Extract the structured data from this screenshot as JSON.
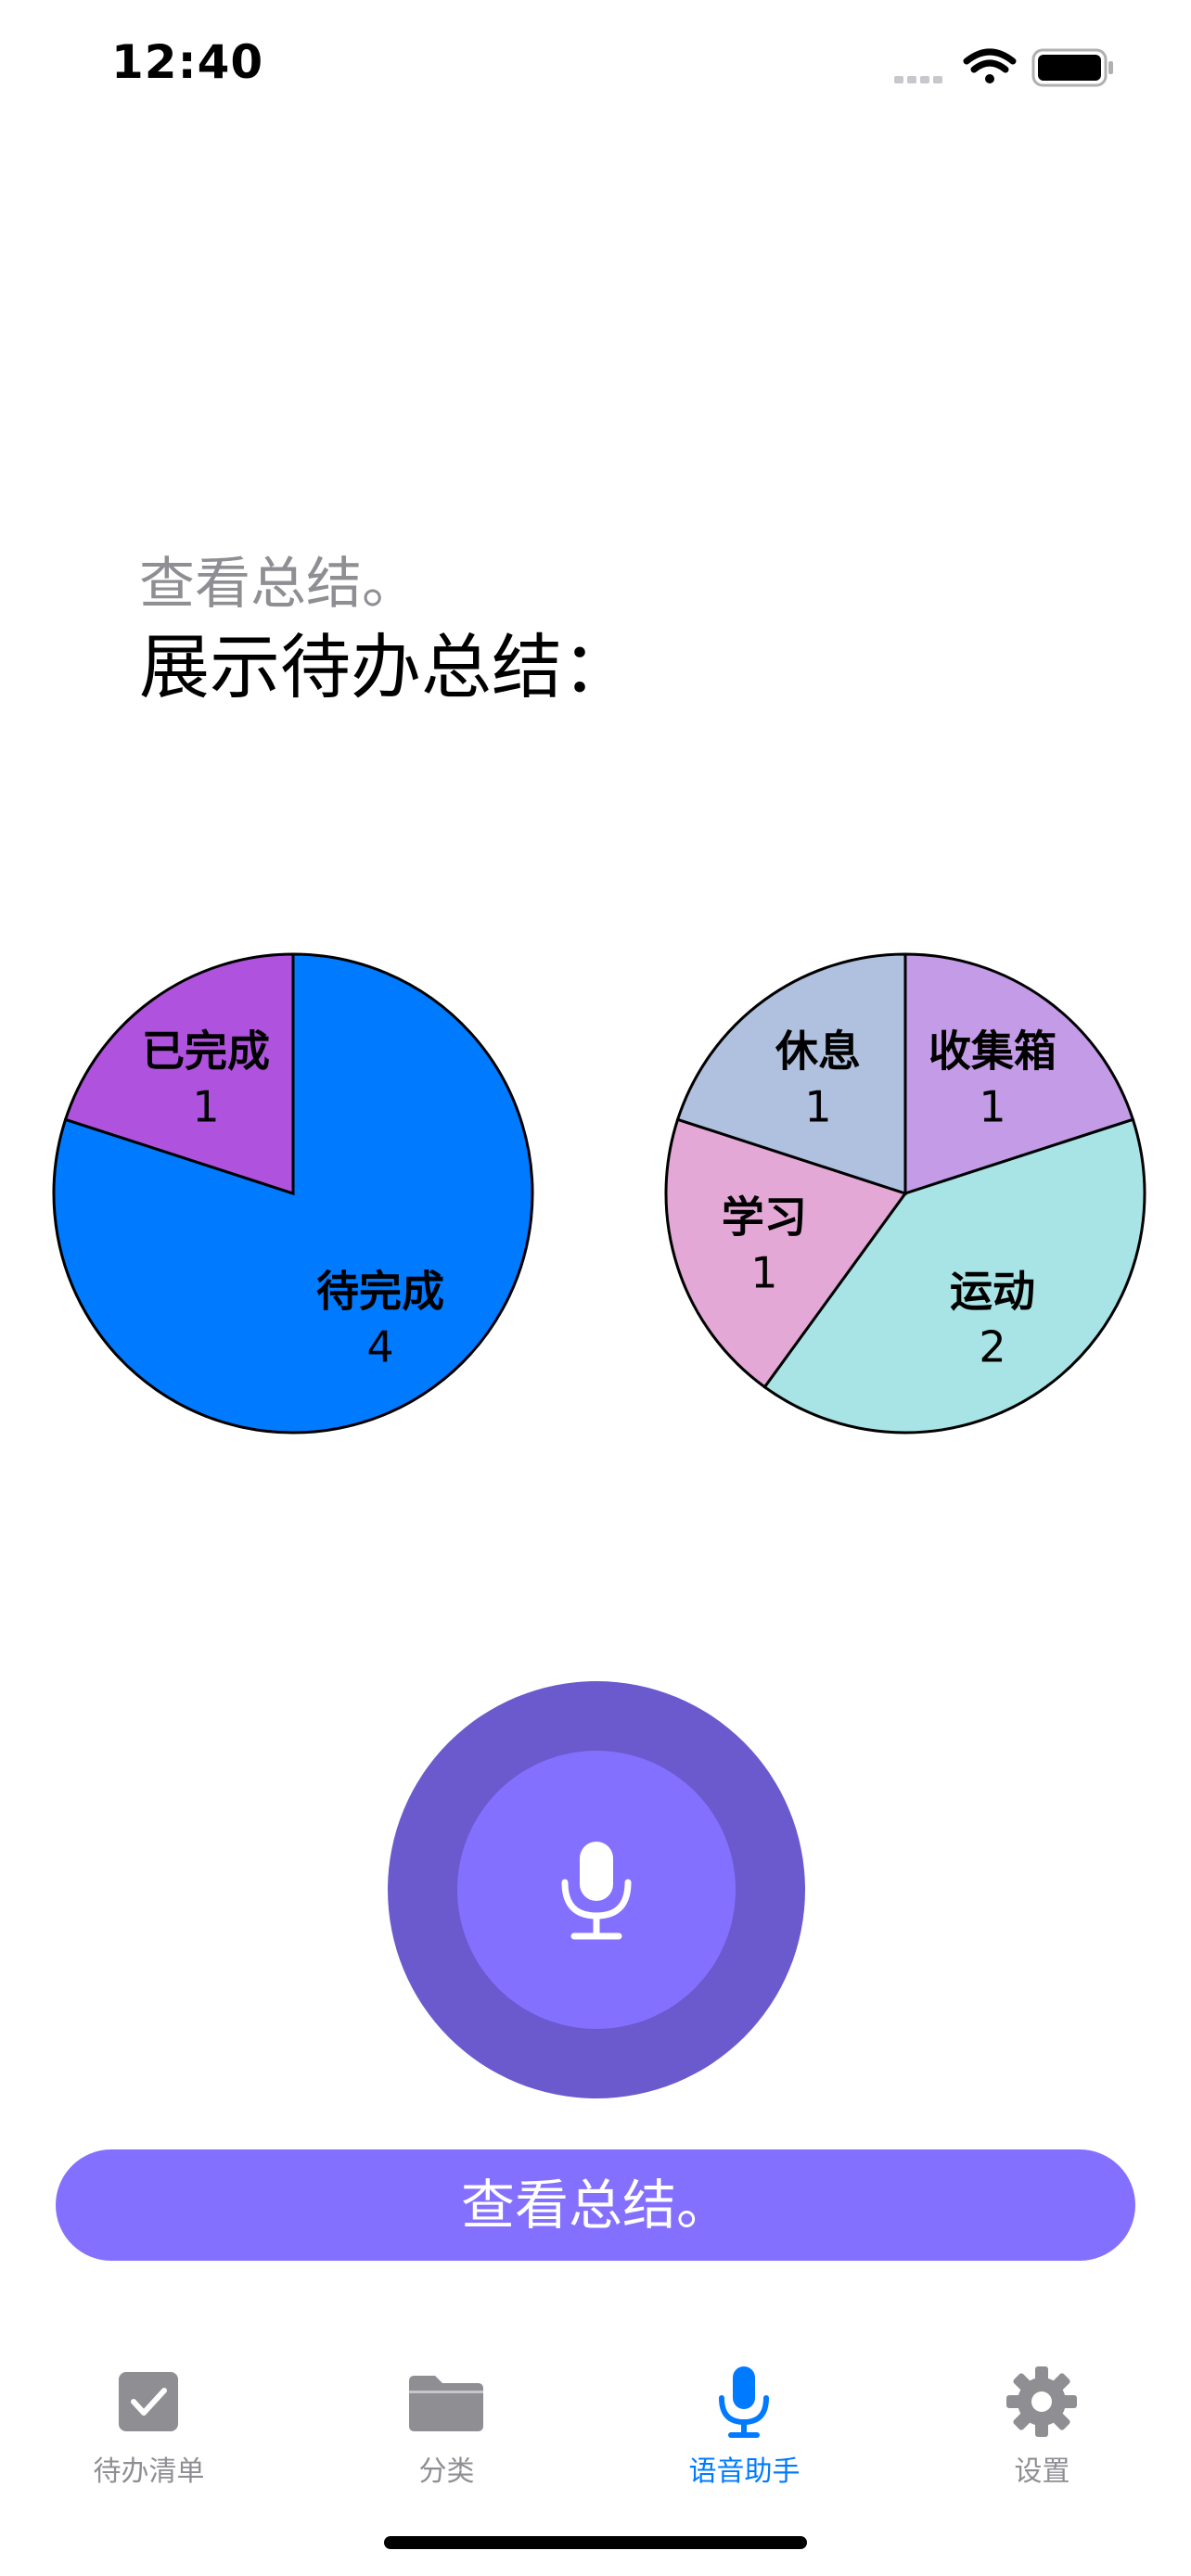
{
  "status_bar": {
    "time": "12:40",
    "icons": [
      "signal-icon",
      "wifi-icon",
      "battery-icon"
    ]
  },
  "prompt": {
    "recognized_text": "查看总结。",
    "response_text": "展示待办总结："
  },
  "chart_data": [
    {
      "type": "pie",
      "title": "",
      "slices": [
        {
          "label": "待完成",
          "value": 4,
          "color": "#007aff"
        },
        {
          "label": "已完成",
          "value": 1,
          "color": "#af52de"
        }
      ]
    },
    {
      "type": "pie",
      "title": "",
      "slices": [
        {
          "label": "收集箱",
          "value": 1,
          "color": "#c39be6"
        },
        {
          "label": "运动",
          "value": 2,
          "color": "#a8e4e5"
        },
        {
          "label": "学习",
          "value": 1,
          "color": "#e3a8d6"
        },
        {
          "label": "休息",
          "value": 1,
          "color": "#afc1df"
        }
      ]
    }
  ],
  "mic": {
    "icon": "microphone-icon",
    "outer_color": "#6a5acd",
    "inner_color": "#8470ff"
  },
  "action_button": {
    "label": "查看总结。",
    "color": "#8470ff"
  },
  "tabs": [
    {
      "label": "待办清单",
      "icon": "checkbox-icon",
      "active": false
    },
    {
      "label": "分类",
      "icon": "folder-icon",
      "active": false
    },
    {
      "label": "语音助手",
      "icon": "microphone-icon",
      "active": true
    },
    {
      "label": "设置",
      "icon": "gear-icon",
      "active": false
    }
  ],
  "colors": {
    "accent": "#007aff",
    "inactive": "#8e8e93"
  }
}
